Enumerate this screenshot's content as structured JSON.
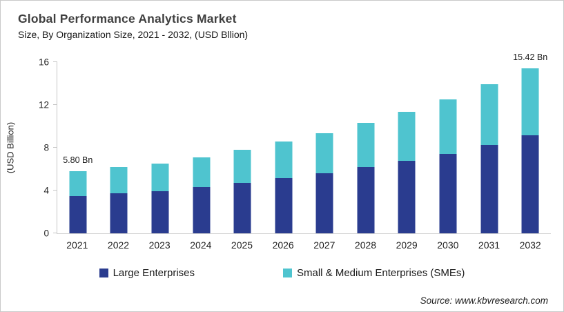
{
  "header": {
    "title": "Global Performance Analytics Market",
    "subtitle": "Size, By Organization Size, 2021 - 2032, (USD Bllion)"
  },
  "chart_data": {
    "type": "bar",
    "stacked": true,
    "title": "Global Performance Analytics Market Size, By Organization Size, 2021 - 2032, (USD Bllion)",
    "xlabel": "",
    "ylabel": "(USD Billion)",
    "ylim": [
      0,
      16
    ],
    "yticks": [
      0,
      4,
      8,
      12,
      16
    ],
    "grid": false,
    "legend_position": "bottom",
    "categories": [
      "2021",
      "2022",
      "2023",
      "2024",
      "2025",
      "2026",
      "2027",
      "2028",
      "2029",
      "2030",
      "2031",
      "2032"
    ],
    "series": [
      {
        "name": "Large Enterprises",
        "color": "#2A3C8F",
        "values": [
          3.5,
          3.76,
          3.93,
          4.34,
          4.7,
          5.15,
          5.61,
          6.19,
          6.78,
          7.45,
          8.23,
          9.17
        ]
      },
      {
        "name": "Small & Medium Enterprises (SMEs)",
        "color": "#4FC4CF",
        "values": [
          2.3,
          2.43,
          2.58,
          2.79,
          3.08,
          3.42,
          3.73,
          4.14,
          4.56,
          5.09,
          5.73,
          6.25
        ]
      }
    ],
    "totals": [
      5.8,
      6.19,
      6.51,
      7.13,
      7.78,
      8.57,
      9.34,
      10.33,
      11.34,
      12.54,
      13.96,
      15.42
    ],
    "bar_labels": {
      "2021": "5.80 Bn",
      "2032": "15.42 Bn"
    }
  },
  "source": {
    "label": "Source: www.kbvresearch.com"
  },
  "colors": {
    "large_enterprises": "#2A3C8F",
    "smes": "#4FC4CF",
    "axis": "#C6C6C6",
    "title_text": "#3F3F3F"
  }
}
